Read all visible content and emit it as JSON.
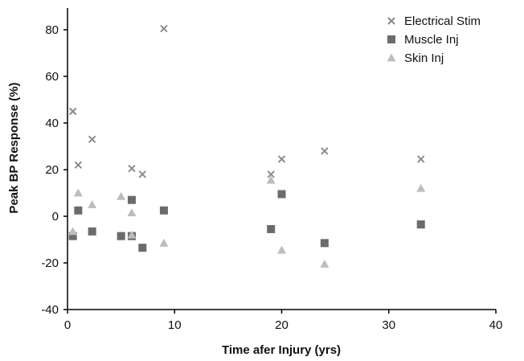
{
  "chart_data": {
    "type": "scatter",
    "title": "",
    "xlabel": "Time afer Injury (yrs)",
    "ylabel": "Peak BP Response (%)",
    "xlim": [
      0,
      40
    ],
    "ylim": [
      -40,
      90
    ],
    "xticks": [
      0,
      10,
      20,
      30,
      40
    ],
    "yticks": [
      -40,
      -20,
      0,
      20,
      40,
      60,
      80
    ],
    "grid": false,
    "legend_position": "top-right",
    "series": [
      {
        "name": "Electrical Stim",
        "marker": "x",
        "color": "#8c8c8c",
        "points": [
          [
            0.5,
            45
          ],
          [
            1,
            22
          ],
          [
            2.3,
            33
          ],
          [
            6,
            20.5
          ],
          [
            7,
            18
          ],
          [
            9,
            80.5
          ],
          [
            19,
            18
          ],
          [
            20,
            24.5
          ],
          [
            24,
            28
          ],
          [
            33,
            24.5
          ]
        ]
      },
      {
        "name": "Muscle Inj",
        "marker": "square",
        "color": "#6b6b6b",
        "points": [
          [
            0.5,
            -8.5
          ],
          [
            1,
            2.5
          ],
          [
            2.3,
            -6.5
          ],
          [
            5,
            -8.5
          ],
          [
            6,
            7
          ],
          [
            6,
            -8.5
          ],
          [
            7,
            -13.5
          ],
          [
            9,
            2.5
          ],
          [
            19,
            -5.5
          ],
          [
            20,
            9.5
          ],
          [
            24,
            -11.5
          ],
          [
            33,
            -3.5
          ]
        ]
      },
      {
        "name": "Skin Inj",
        "marker": "triangle",
        "color": "#bdbdbd",
        "points": [
          [
            0.5,
            -6.5
          ],
          [
            1,
            10
          ],
          [
            2.3,
            5
          ],
          [
            5,
            8.5
          ],
          [
            6,
            1.5
          ],
          [
            6,
            -8
          ],
          [
            9,
            -11.5
          ],
          [
            19,
            15.5
          ],
          [
            20,
            -14.5
          ],
          [
            24,
            -20.5
          ],
          [
            33,
            12
          ]
        ]
      }
    ]
  }
}
